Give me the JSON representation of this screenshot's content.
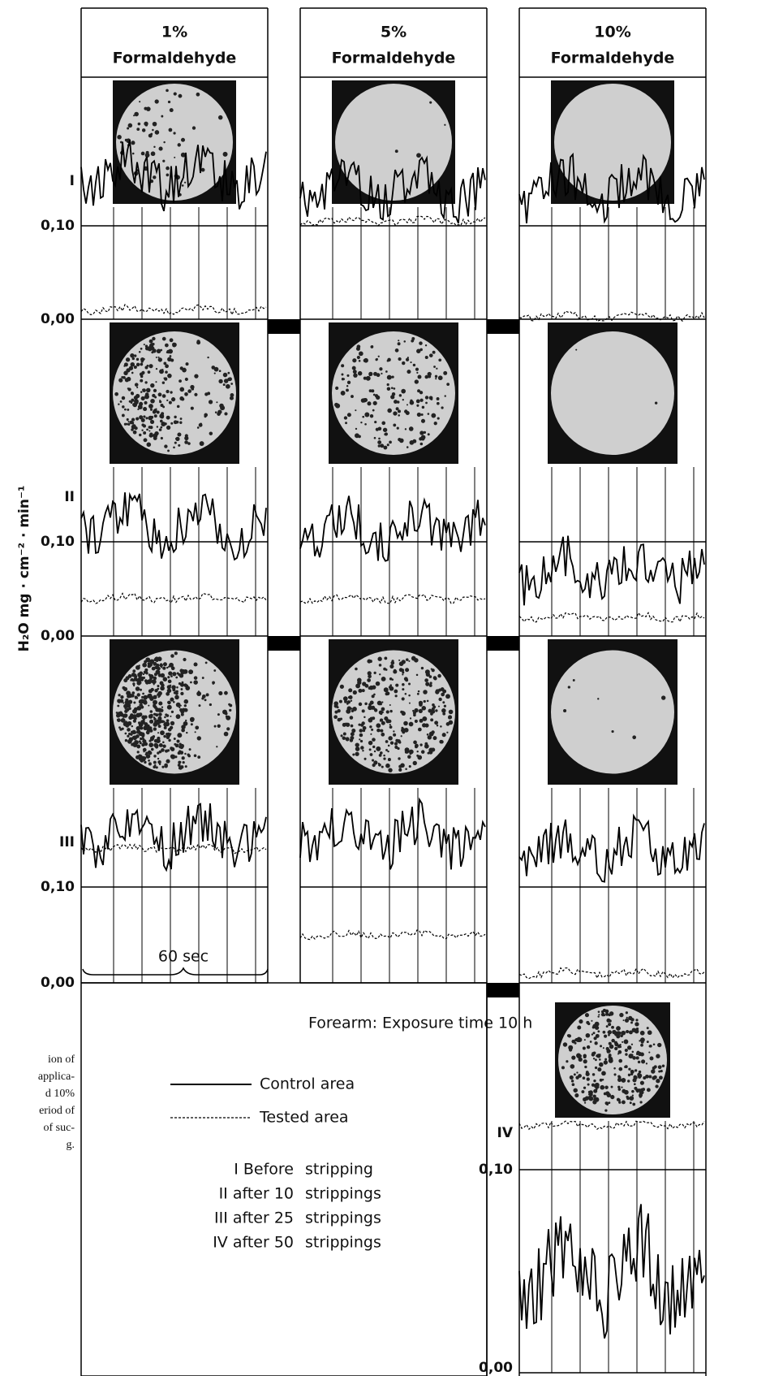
{
  "columns": [
    {
      "percent": "1%",
      "label": "Formaldehyde"
    },
    {
      "percent": "5%",
      "label": "Formaldehyde"
    },
    {
      "percent": "10%",
      "label": "Formaldehyde"
    }
  ],
  "y_axis_label": "H₂O mg · cm⁻² · min⁻¹",
  "rows": [
    {
      "label": "I",
      "ticks": [
        "0,10",
        "0,00"
      ]
    },
    {
      "label": "II",
      "ticks": [
        "0,10",
        "0,00"
      ]
    },
    {
      "label": "III",
      "ticks": [
        "0,10",
        "0,00"
      ]
    },
    {
      "label": "IV",
      "ticks": [
        "0,10",
        "0,00"
      ]
    }
  ],
  "time_scale": "60 sec",
  "legend": {
    "title": "Forearm: Exposure time 10 h",
    "series": [
      "Control area",
      "Tested area"
    ],
    "stages": [
      [
        "I Before",
        "stripping"
      ],
      [
        "II after 10",
        "strippings"
      ],
      [
        "III after 25",
        "strippings"
      ],
      [
        "IV after 50",
        "strippings"
      ]
    ]
  },
  "caption_fragments": [
    "ion of",
    "applica-",
    "d 10%",
    "eriod of",
    "of suc-",
    "g."
  ]
}
